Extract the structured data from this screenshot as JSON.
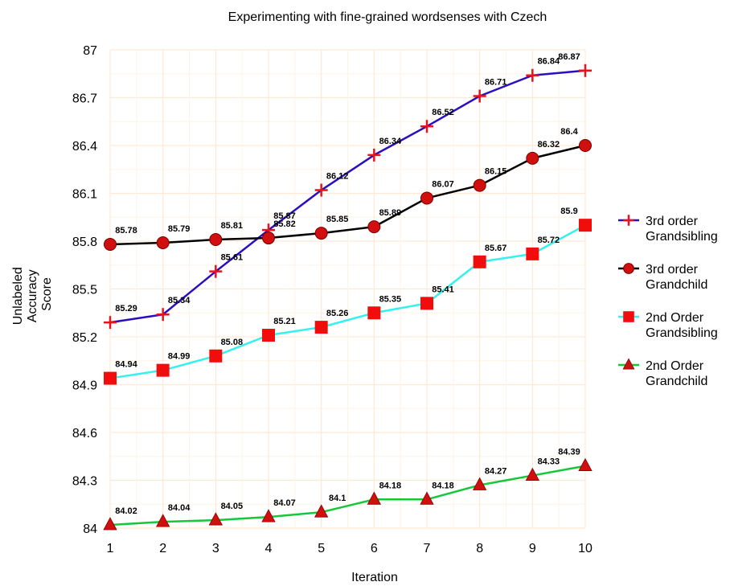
{
  "chart_data": {
    "type": "line",
    "title": "Experimenting with fine-grained wordsenses with Czech",
    "xlabel": "Iteration",
    "ylabel": [
      "Unlabeled",
      "Accuracy",
      "Score"
    ],
    "x": [
      1,
      2,
      3,
      4,
      5,
      6,
      7,
      8,
      9,
      10
    ],
    "xticks": [
      "1",
      "2",
      "3",
      "4",
      "5",
      "6",
      "7",
      "8",
      "9",
      "10"
    ],
    "xlim": [
      1,
      10
    ],
    "ylim": [
      84,
      87
    ],
    "yticks": [
      "84",
      "84.3",
      "84.6",
      "84.9",
      "85.2",
      "85.5",
      "85.8",
      "86.1",
      "86.4",
      "86.7",
      "87"
    ],
    "ytick_values": [
      84,
      84.3,
      84.6,
      84.9,
      85.2,
      85.5,
      85.8,
      86.1,
      86.4,
      86.7,
      87
    ],
    "grid": true,
    "legend_position": "right",
    "series": [
      {
        "name": "3rd order Grandsibling",
        "legend_lines": [
          "3rd order",
          "Grandsibling"
        ],
        "marker": "cross",
        "line_color": "#2a0fbf",
        "marker_color": "#e8121c",
        "values": [
          85.29,
          85.34,
          85.61,
          85.87,
          86.12,
          86.34,
          86.52,
          86.71,
          86.84,
          86.87
        ],
        "labels": [
          "85.29",
          "85.34",
          "85.61",
          "85.87",
          "86.12",
          "86.34",
          "86.52",
          "86.71",
          "86.84",
          "86.87"
        ]
      },
      {
        "name": "3rd order Grandchild",
        "legend_lines": [
          "3rd order",
          "Grandchild"
        ],
        "marker": "circle",
        "line_color": "#000000",
        "marker_color": "#d10f0f",
        "values": [
          85.78,
          85.79,
          85.81,
          85.82,
          85.85,
          85.89,
          86.07,
          86.15,
          86.32,
          86.4
        ],
        "labels": [
          "85.78",
          "85.79",
          "85.81",
          "85.82",
          "85.85",
          "85.89",
          "86.07",
          "86.15",
          "86.32",
          "86.4"
        ]
      },
      {
        "name": "2nd Order Grandsibling",
        "legend_lines": [
          "2nd Order",
          "Grandsibling"
        ],
        "marker": "square",
        "line_color": "#33f2ee",
        "marker_color": "#f20d0d",
        "values": [
          84.94,
          84.99,
          85.08,
          85.21,
          85.26,
          85.35,
          85.41,
          85.67,
          85.72,
          85.9
        ],
        "labels": [
          "84.94",
          "84.99",
          "85.08",
          "85.21",
          "85.26",
          "85.35",
          "85.41",
          "85.67",
          "85.72",
          "85.9"
        ]
      },
      {
        "name": "2nd Order Grandchild",
        "legend_lines": [
          "2nd Order",
          "Grandchild"
        ],
        "marker": "triangle",
        "line_color": "#14c83a",
        "marker_color": "#d10f0f",
        "values": [
          84.02,
          84.04,
          84.05,
          84.07,
          84.1,
          84.18,
          84.18,
          84.27,
          84.33,
          84.39
        ],
        "labels": [
          "84.02",
          "84.04",
          "84.05",
          "84.07",
          "84.1",
          "84.18",
          "84.18",
          "84.27",
          "84.33",
          "84.39"
        ]
      }
    ]
  }
}
